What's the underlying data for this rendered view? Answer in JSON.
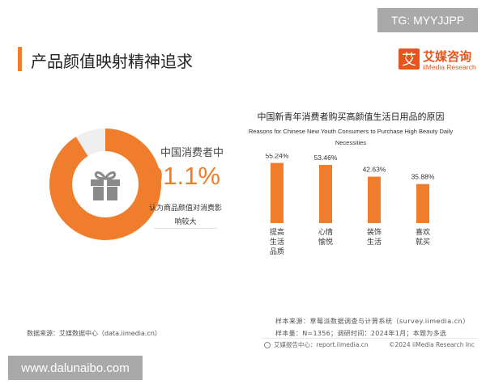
{
  "watermarks": {
    "top": "TG: MYYJJPP",
    "bottom": "www.dalunaibo.com"
  },
  "page": {
    "title": "产品颜值映射精神追求"
  },
  "logo": {
    "icon_char": "艾",
    "cn": "艾媒咨询",
    "en": "iiMedia Research",
    "color": "#e8541e"
  },
  "highlight": {
    "label": "中国消费者中",
    "percent_text": "91.1%",
    "percent_value": 91.1,
    "note": "认为商品颜值对消费影响较大",
    "accent": "#ef7d2b",
    "icon": "gift-icon"
  },
  "chart_data": {
    "type": "bar",
    "title_cn": "中国新青年消费者购买高颜值生活日用品的原因",
    "title_en": "Reasons for Chinese New Youth Consumers to Purchase High Beauty Daily Necessities",
    "categories": [
      "提高生活品质",
      "心情愉悦",
      "装饰生活",
      "喜欢就买"
    ],
    "category_lines": [
      [
        "提高",
        "生活",
        "品质"
      ],
      [
        "心情",
        "愉悦"
      ],
      [
        "装饰",
        "生活"
      ],
      [
        "喜欢",
        "就买"
      ]
    ],
    "values": [
      55.24,
      53.46,
      42.63,
      35.88
    ],
    "value_labels": [
      "55.24%",
      "53.46%",
      "42.63%",
      "35.88%"
    ],
    "unit": "%",
    "ylim": [
      0,
      60
    ],
    "bar_color": "#ef7d2b",
    "grid": false,
    "legend": "none"
  },
  "sources": {
    "left": "数据来源：艾媒数据中心（data.iimedia.cn）",
    "right_1": "样本来源：草莓派数据调查与计算系统（survey.iimedia.cn）",
    "right_2": "样本量：N=1356；调研时间：2024年1月；本题为多选",
    "footer_left": "艾媒报告中心：report.iimedia.cn",
    "footer_right": "©2024 iiMedia Research Inc"
  }
}
